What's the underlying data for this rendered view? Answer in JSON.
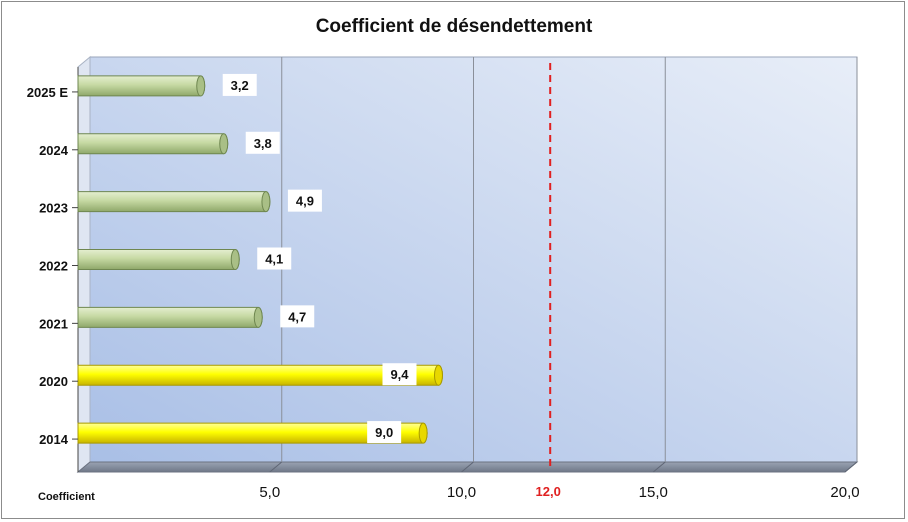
{
  "chart_data": {
    "type": "bar",
    "orientation": "horizontal",
    "title": "Coefficient de désendettement",
    "categories": [
      "2025 E",
      "2024",
      "2023",
      "2022",
      "2021",
      "2020",
      "2014"
    ],
    "values": [
      3.2,
      3.8,
      4.9,
      4.1,
      4.7,
      9.4,
      9.0
    ],
    "value_labels": [
      "3,2",
      "3,8",
      "4,9",
      "4,1",
      "4,7",
      "9,4",
      "9,0"
    ],
    "bar_colors": [
      "#c6d9a3",
      "#c6d9a3",
      "#c6d9a3",
      "#c6d9a3",
      "#c6d9a3",
      "#ffff00",
      "#ffff00"
    ],
    "xlabel": "Coefficient",
    "xlim": [
      0,
      20
    ],
    "x_ticks": [
      5,
      10,
      15,
      20
    ],
    "x_tick_labels": [
      "5,0",
      "10,0",
      "15,0",
      "20,0"
    ],
    "threshold": {
      "value": 12,
      "label": "12,0",
      "color": "#e02020",
      "style": "dashed"
    },
    "grid": true,
    "legend": "none",
    "background_gradient": [
      "#a9bfe6",
      "#e8eef8"
    ]
  }
}
